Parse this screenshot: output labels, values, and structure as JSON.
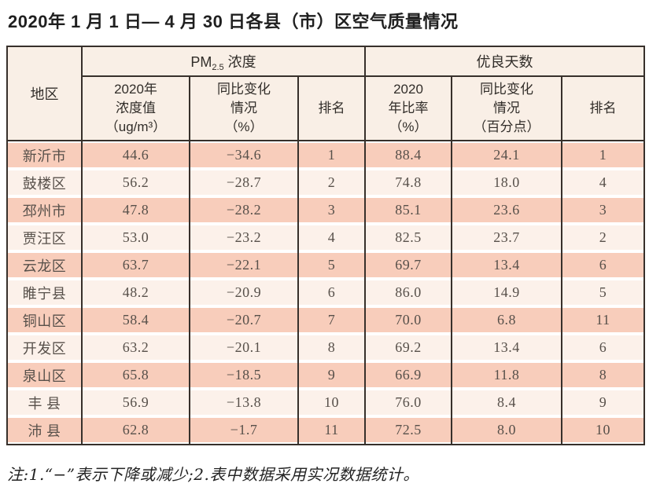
{
  "title": "2020年 1 月 1 日— 4 月 30 日各县（市）区空气质量情况",
  "colors": {
    "border": "#37302b",
    "header_bg": "#f9efe6",
    "row_odd": "#f8cdbb",
    "row_even": "#fcf1ea",
    "data_text": "#57504a"
  },
  "table": {
    "header": {
      "region": "地区",
      "pm25_group_prefix": "PM",
      "pm25_group_sub": "2.5",
      "pm25_group_suffix": " 浓度",
      "good_days_group": "优良天数",
      "subcols": {
        "pm_value": "2020年\n浓度值\n（ug/m³）",
        "pm_change": "同比变化\n情况\n（%）",
        "pm_rank": "排名",
        "good_ratio": "2020\n年比率\n（%）",
        "good_change": "同比变化\n情况\n（百分点）",
        "good_rank": "排名"
      }
    },
    "rows": [
      [
        "新沂市",
        "44.6",
        "−34.6",
        "1",
        "88.4",
        "24.1",
        "1"
      ],
      [
        "鼓楼区",
        "56.2",
        "−28.7",
        "2",
        "74.8",
        "18.0",
        "4"
      ],
      [
        "邳州市",
        "47.8",
        "−28.2",
        "3",
        "85.1",
        "23.6",
        "3"
      ],
      [
        "贾汪区",
        "53.0",
        "−23.2",
        "4",
        "82.5",
        "23.7",
        "2"
      ],
      [
        "云龙区",
        "63.7",
        "−22.1",
        "5",
        "69.7",
        "13.4",
        "6"
      ],
      [
        "睢宁县",
        "48.2",
        "−20.9",
        "6",
        "86.0",
        "14.9",
        "5"
      ],
      [
        "铜山区",
        "58.4",
        "−20.7",
        "7",
        "70.0",
        "6.8",
        "11"
      ],
      [
        "开发区",
        "63.2",
        "−20.1",
        "8",
        "69.2",
        "13.4",
        "6"
      ],
      [
        "泉山区",
        "65.8",
        "−18.5",
        "9",
        "66.9",
        "11.8",
        "8"
      ],
      [
        "丰 县",
        "56.9",
        "−13.8",
        "10",
        "76.0",
        "8.4",
        "9"
      ],
      [
        "沛 县",
        "62.8",
        "−1.7",
        "11",
        "72.5",
        "8.0",
        "10"
      ]
    ]
  },
  "footnote": "注:1.“−”表示下降或减少;2.表中数据采用实况数据统计。"
}
